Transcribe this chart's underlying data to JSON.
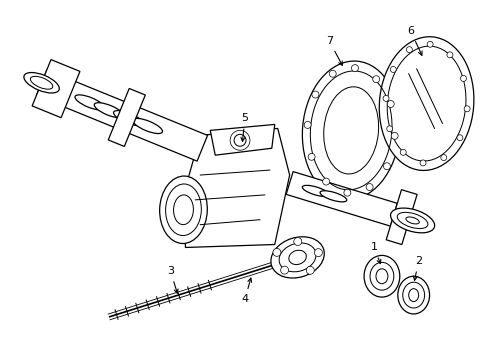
{
  "bg_color": "#ffffff",
  "line_color": "#000000",
  "figsize": [
    4.89,
    3.6
  ],
  "dpi": 100,
  "lw": 0.9,
  "label_fs": 8
}
